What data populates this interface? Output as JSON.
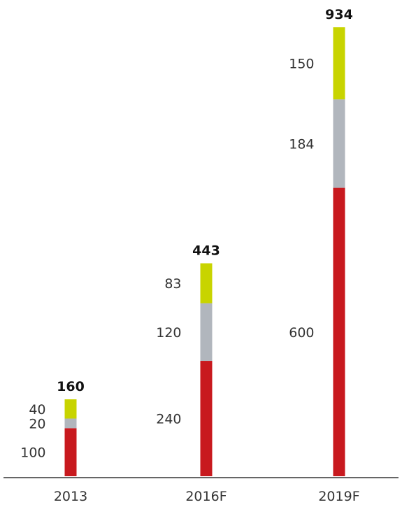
{
  "chart_data": {
    "type": "bar",
    "stacked": true,
    "categories": [
      "2013",
      "2016F",
      "2019F"
    ],
    "series": [
      {
        "values": [
          100,
          240,
          600
        ],
        "color": "#c8191e"
      },
      {
        "values": [
          20,
          120,
          184
        ],
        "color": "#b1b6bd"
      },
      {
        "values": [
          40,
          83,
          150
        ],
        "color": "#c8d400"
      }
    ],
    "totals": [
      "160",
      "443",
      "934"
    ],
    "segment_labels": [
      [
        "100",
        "20",
        "40"
      ],
      [
        "240",
        "120",
        "83"
      ],
      [
        "600",
        "184",
        "150"
      ]
    ],
    "title": "",
    "xlabel": "",
    "ylabel": "",
    "ylim": [
      0,
      934
    ],
    "grid": false,
    "legend": "none"
  }
}
